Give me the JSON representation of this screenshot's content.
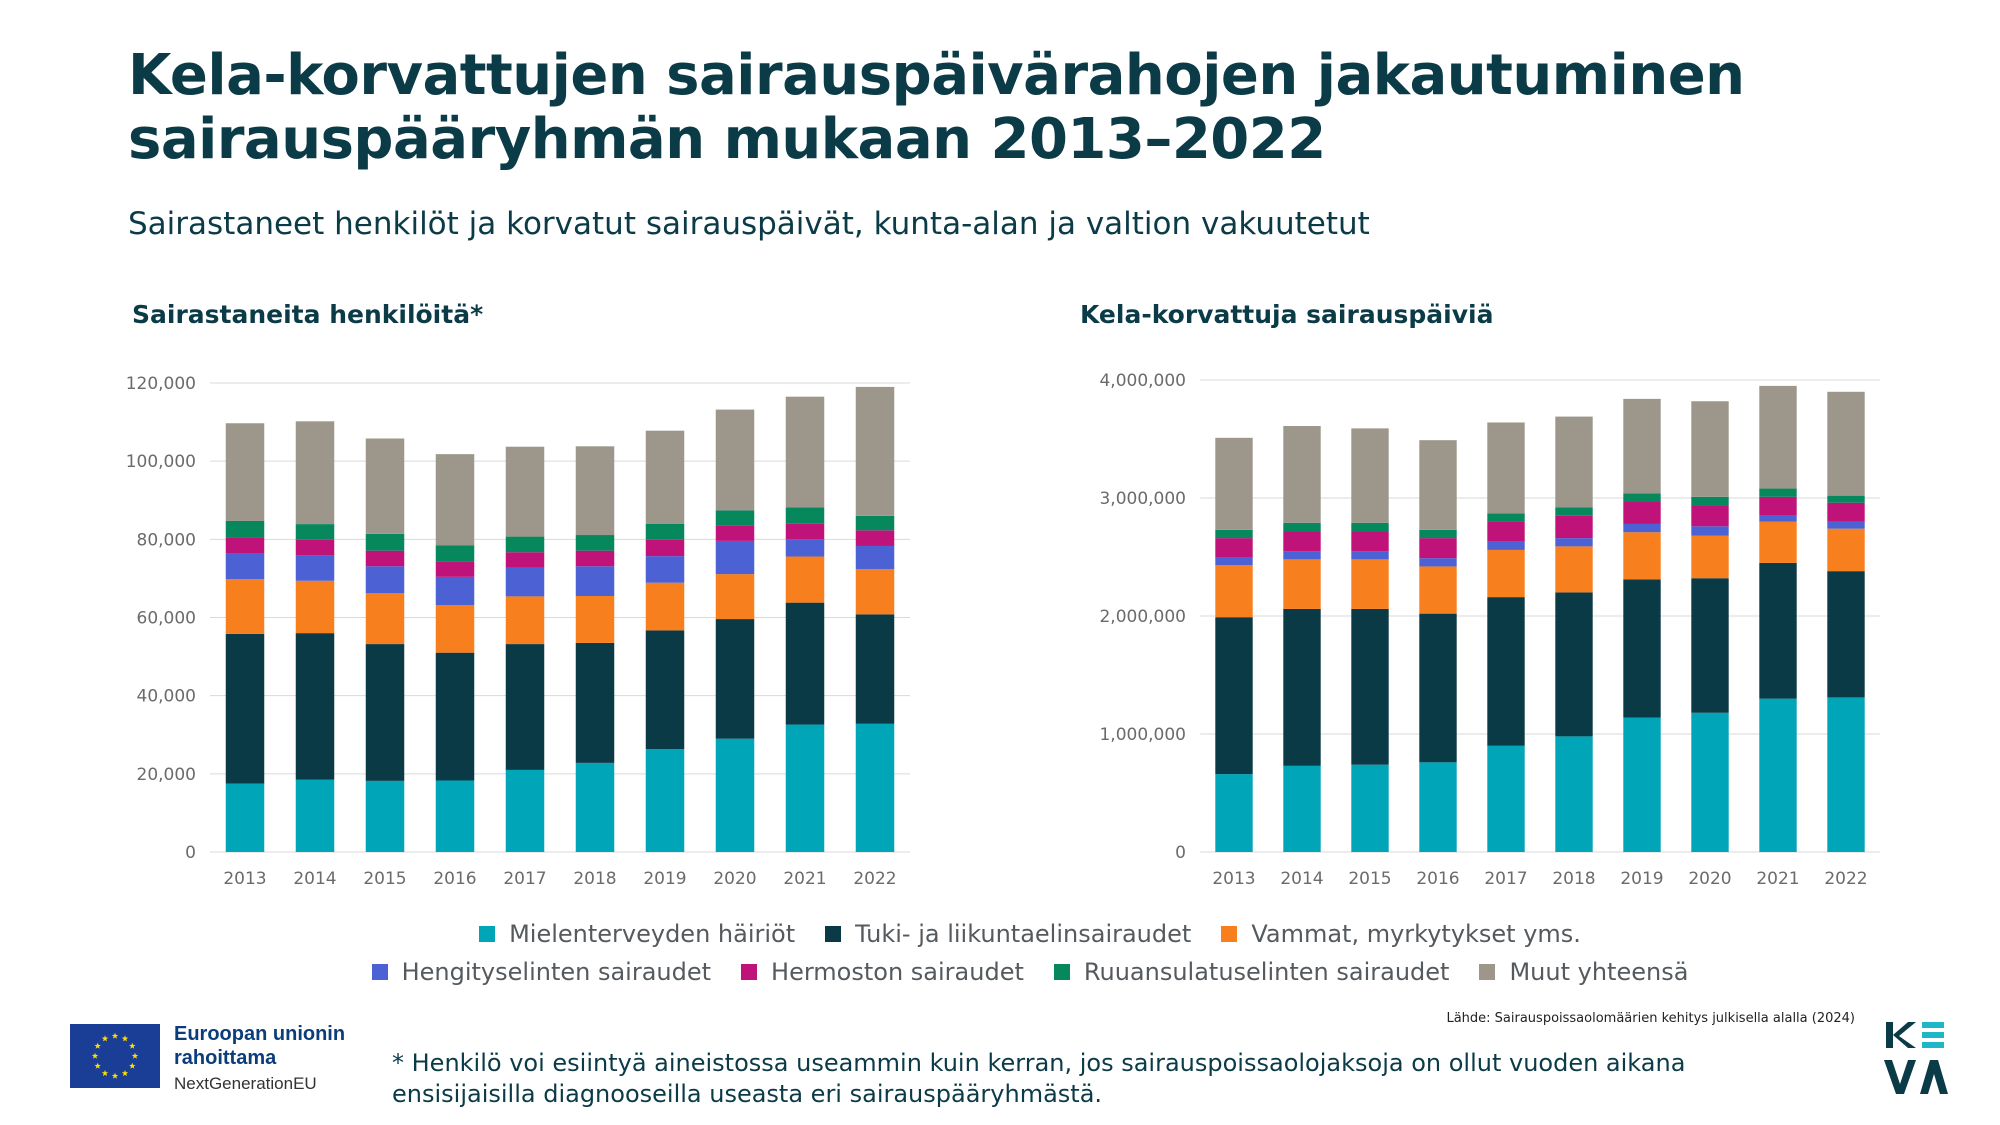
{
  "page": {
    "title_line1": "Kela-korvattujen sairauspäivärahojen jakautuminen",
    "title_line2": "sairauspääryhmän mukaan 2013–2022",
    "subtitle": "Sairastaneet henkilöt ja korvatut sairauspäivät, kunta-alan ja valtion vakuutetut",
    "source": "Lähde: Sairauspoissaolomäärien kehitys julkisella alalla (2024)",
    "footnote": "* Henkilö voi esiintyä aineistossa useammin kuin kerran, jos sairauspoissaolojaksoja on ollut vuoden aikana ensisijaisilla diagnooseilla useasta eri sairauspääryhmästä.",
    "eu_line1": "Euroopan unionin",
    "eu_line2": "rahoittama",
    "eu_line3": "NextGenerationEU",
    "keva_logo_text": "KEVA"
  },
  "legend": [
    {
      "name": "Mielenterveyden häiriöt",
      "color": "#00a5b8"
    },
    {
      "name": "Tuki- ja liikuntaelinsairaudet",
      "color": "#0b3a47"
    },
    {
      "name": "Vammat, myrkytykset yms.",
      "color": "#f77f1e"
    },
    {
      "name": "Hengityselinten sairaudet",
      "color": "#4c61d3"
    },
    {
      "name": "Hermoston sairaudet",
      "color": "#c0137a"
    },
    {
      "name": "Ruuansulatuselinten sairaudet",
      "color": "#06875c"
    },
    {
      "name": "Muut yhteensä",
      "color": "#9c978a"
    }
  ],
  "chart_data": [
    {
      "type": "bar",
      "stacked": true,
      "title": "Sairastaneita henkilöitä*",
      "categories": [
        "2013",
        "2014",
        "2015",
        "2016",
        "2017",
        "2018",
        "2019",
        "2020",
        "2021",
        "2022"
      ],
      "ylim": [
        0,
        120000
      ],
      "yticks": [
        0,
        20000,
        40000,
        60000,
        80000,
        100000,
        120000
      ],
      "ytick_labels": [
        "0",
        "20,000",
        "40,000",
        "60,000",
        "80,000",
        "100,000",
        "120,000"
      ],
      "grid": true,
      "series": [
        {
          "name": "Mielenterveyden häiriöt",
          "values": [
            17500,
            18500,
            18200,
            18300,
            21000,
            22800,
            26300,
            29000,
            32600,
            32800
          ]
        },
        {
          "name": "Tuki- ja liikuntaelinsairaudet",
          "values": [
            38300,
            37500,
            35000,
            32700,
            32200,
            30700,
            30400,
            30600,
            31200,
            28000
          ]
        },
        {
          "name": "Vammat, myrkytykset yms.",
          "values": [
            14000,
            13400,
            13000,
            12200,
            12200,
            12000,
            12200,
            11500,
            11800,
            11600
          ]
        },
        {
          "name": "Hengityselinten sairaudet",
          "values": [
            6600,
            6500,
            6900,
            7200,
            7300,
            7600,
            6800,
            8500,
            4400,
            5900
          ]
        },
        {
          "name": "Hermoston sairaudet",
          "values": [
            4100,
            4000,
            4000,
            3900,
            4000,
            4000,
            4200,
            4000,
            4000,
            4000
          ]
        },
        {
          "name": "Ruuansulatuselinten sairaudet",
          "values": [
            4200,
            4000,
            4300,
            4200,
            4000,
            4000,
            4100,
            3800,
            4200,
            3700
          ]
        },
        {
          "name": "Muut yhteensä",
          "values": [
            25000,
            26300,
            24400,
            23300,
            23000,
            22700,
            23800,
            25800,
            28300,
            33000
          ]
        }
      ]
    },
    {
      "type": "bar",
      "stacked": true,
      "title": "Kela-korvattuja sairauspäiviä",
      "categories": [
        "2013",
        "2014",
        "2015",
        "2016",
        "2017",
        "2018",
        "2019",
        "2020",
        "2021",
        "2022"
      ],
      "ylim": [
        0,
        4000000
      ],
      "yticks": [
        0,
        1000000,
        2000000,
        3000000,
        4000000
      ],
      "ytick_labels": [
        "0",
        "1,000,000",
        "2,000,000",
        "3,000,000",
        "4,000,000"
      ],
      "grid": true,
      "series": [
        {
          "name": "Mielenterveyden häiriöt",
          "values": [
            660000,
            730000,
            740000,
            760000,
            900000,
            980000,
            1140000,
            1180000,
            1300000,
            1310000
          ]
        },
        {
          "name": "Tuki- ja liikuntaelinsairaudet",
          "values": [
            1330000,
            1330000,
            1320000,
            1260000,
            1260000,
            1220000,
            1170000,
            1140000,
            1150000,
            1070000
          ]
        },
        {
          "name": "Vammat, myrkytykset yms.",
          "values": [
            440000,
            420000,
            420000,
            400000,
            400000,
            390000,
            400000,
            360000,
            350000,
            360000
          ]
        },
        {
          "name": "Hengityselinten sairaudet",
          "values": [
            70000,
            70000,
            70000,
            70000,
            70000,
            70000,
            70000,
            80000,
            50000,
            60000
          ]
        },
        {
          "name": "Hermoston sairaudet",
          "values": [
            160000,
            170000,
            170000,
            170000,
            170000,
            190000,
            190000,
            180000,
            160000,
            160000
          ]
        },
        {
          "name": "Ruuansulatuselinten sairaudet",
          "values": [
            70000,
            70000,
            70000,
            70000,
            70000,
            70000,
            70000,
            70000,
            70000,
            60000
          ]
        },
        {
          "name": "Muut yhteensä",
          "values": [
            780000,
            820000,
            800000,
            760000,
            770000,
            770000,
            800000,
            810000,
            870000,
            880000
          ]
        }
      ]
    }
  ]
}
